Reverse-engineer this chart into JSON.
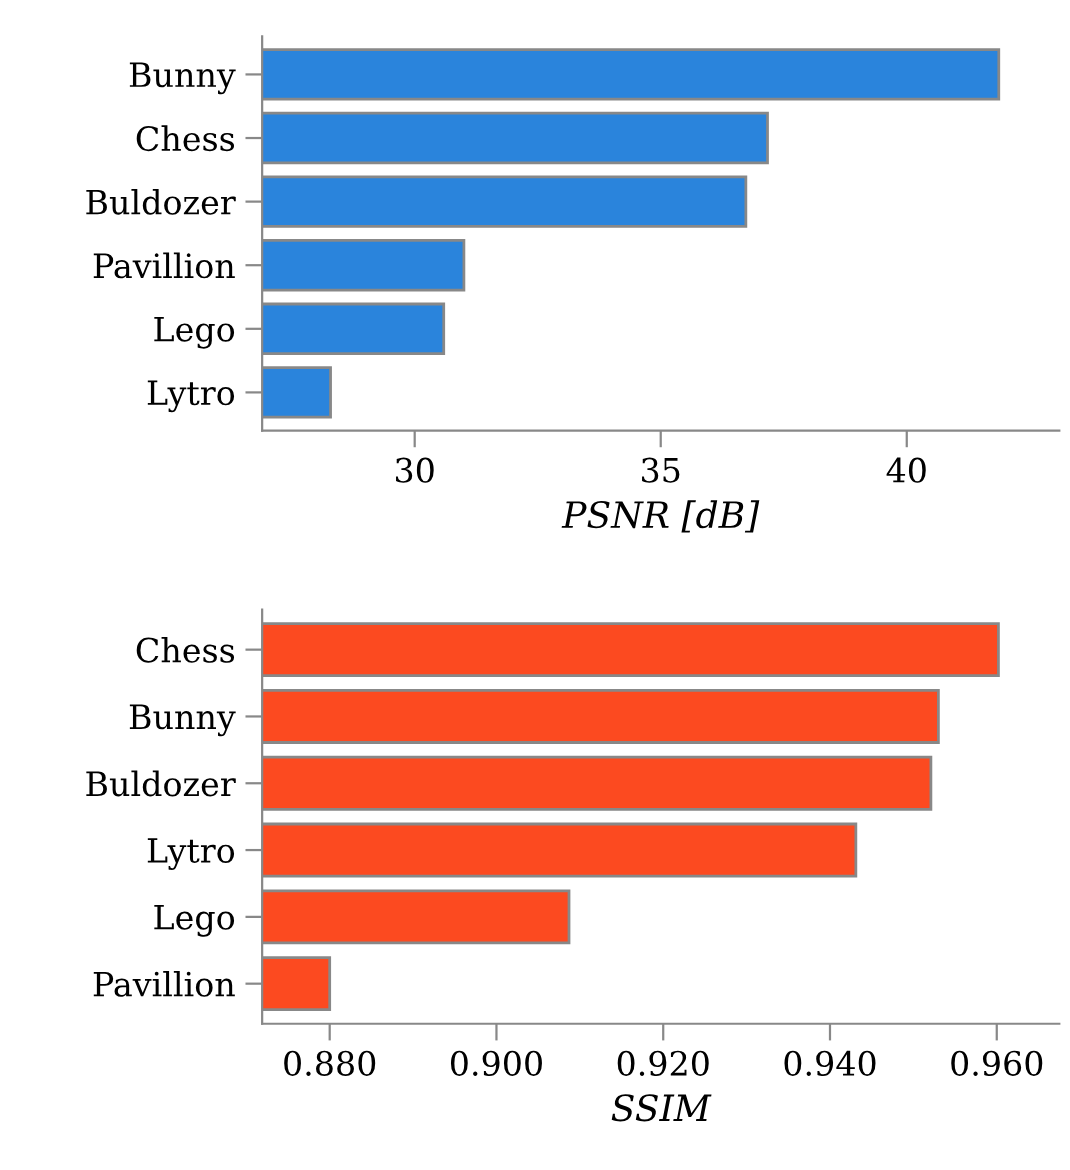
{
  "chart_data": [
    {
      "type": "bar",
      "orientation": "horizontal",
      "xlabel": "PSNR [dB]",
      "categories": [
        "Bunny",
        "Chess",
        "Buldozer",
        "Pavillion",
        "Lego",
        "Lytro"
      ],
      "values": [
        41.87,
        37.17,
        36.73,
        31.0,
        30.59,
        28.29
      ],
      "color": "#2a84dc",
      "xlim": [
        26.9,
        43.1
      ],
      "xticks": [
        30,
        35,
        40
      ],
      "grid": false
    },
    {
      "type": "bar",
      "orientation": "horizontal",
      "xlabel": "SSIM",
      "categories": [
        "Chess",
        "Bunny",
        "Buldozer",
        "Lytro",
        "Lego",
        "Pavillion"
      ],
      "values": [
        0.9602,
        0.953,
        0.9521,
        0.9431,
        0.9087,
        0.88
      ],
      "color": "#fc4a20",
      "xlim": [
        0.8719,
        0.9675
      ],
      "xticks": [
        {
          "value": 0.88,
          "label": "0.880"
        },
        {
          "value": 0.9,
          "label": "0.900"
        },
        {
          "value": 0.92,
          "label": "0.920"
        },
        {
          "value": 0.94,
          "label": "0.940"
        },
        {
          "value": 0.96,
          "label": "0.960"
        }
      ],
      "grid": false
    }
  ]
}
